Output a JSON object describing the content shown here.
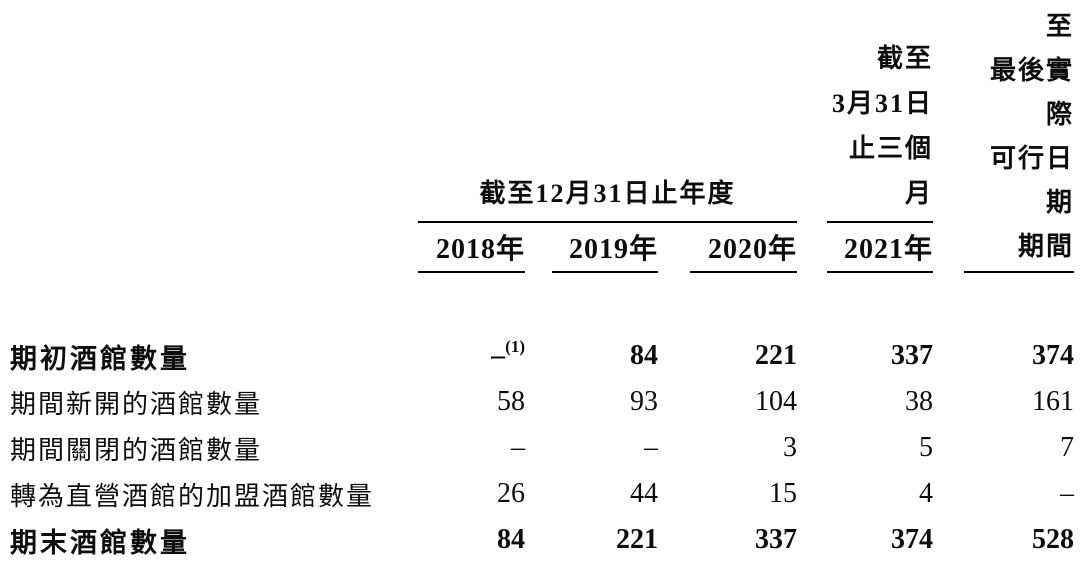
{
  "table": {
    "header": {
      "group_year": "截至12月31日止年度",
      "group_q1_lines": [
        "截至",
        "3月31日",
        "止三個月"
      ],
      "last_col_lines": [
        "2021年",
        "3月31日至",
        "最後實際",
        "可行日期",
        "期間"
      ],
      "year_cols": [
        "2018年",
        "2019年",
        "2020年",
        "2021年"
      ]
    },
    "rows": [
      {
        "label": "期初酒館數量",
        "bold": true,
        "values": [
          "–",
          "84",
          "221",
          "337",
          "374"
        ],
        "footnote": "(1)"
      },
      {
        "label": "期間新開的酒館數量",
        "bold": false,
        "values": [
          "58",
          "93",
          "104",
          "38",
          "161"
        ]
      },
      {
        "label": "期間關閉的酒館數量",
        "bold": false,
        "values": [
          "–",
          "–",
          "3",
          "5",
          "7"
        ]
      },
      {
        "label": "轉為直營酒館的加盟酒館數量",
        "bold": false,
        "values": [
          "26",
          "44",
          "15",
          "4",
          "–"
        ]
      },
      {
        "label": "期末酒館數量",
        "bold": true,
        "values": [
          "84",
          "221",
          "337",
          "374",
          "528"
        ]
      }
    ]
  },
  "colors": {
    "text": "#0d0d0d",
    "rule_line": "#000000",
    "background": "#ffffff"
  }
}
